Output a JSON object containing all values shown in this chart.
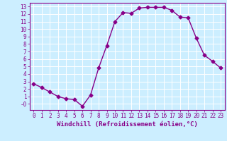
{
  "x": [
    0,
    1,
    2,
    3,
    4,
    5,
    6,
    7,
    8,
    9,
    10,
    11,
    12,
    13,
    14,
    15,
    16,
    17,
    18,
    19,
    20,
    21,
    22,
    23
  ],
  "y": [
    2.7,
    2.2,
    1.6,
    1.0,
    0.7,
    0.6,
    -0.3,
    1.2,
    4.8,
    7.8,
    11.0,
    12.2,
    12.1,
    12.8,
    12.9,
    12.9,
    12.9,
    12.5,
    11.6,
    11.5,
    8.8,
    6.5,
    5.7,
    4.8
  ],
  "line_color": "#880088",
  "marker": "D",
  "markersize": 2.5,
  "bg_color": "#cceeff",
  "grid_color": "#aaddcc",
  "xlabel": "Windchill (Refroidissement éolien,°C)",
  "ylim_min": -0.8,
  "ylim_max": 13.5,
  "xlim_min": -0.5,
  "xlim_max": 23.5,
  "yticks": [
    0,
    1,
    2,
    3,
    4,
    5,
    6,
    7,
    8,
    9,
    10,
    11,
    12,
    13
  ],
  "ytick_labels": [
    "-0",
    "1",
    "2",
    "3",
    "4",
    "5",
    "6",
    "7",
    "8",
    "9",
    "10",
    "11",
    "12",
    "13"
  ],
  "xticks": [
    0,
    1,
    2,
    3,
    4,
    5,
    6,
    7,
    8,
    9,
    10,
    11,
    12,
    13,
    14,
    15,
    16,
    17,
    18,
    19,
    20,
    21,
    22,
    23
  ],
  "tick_color": "#880088",
  "label_fontsize": 6.5,
  "tick_fontsize": 5.5,
  "linewidth": 1.0
}
